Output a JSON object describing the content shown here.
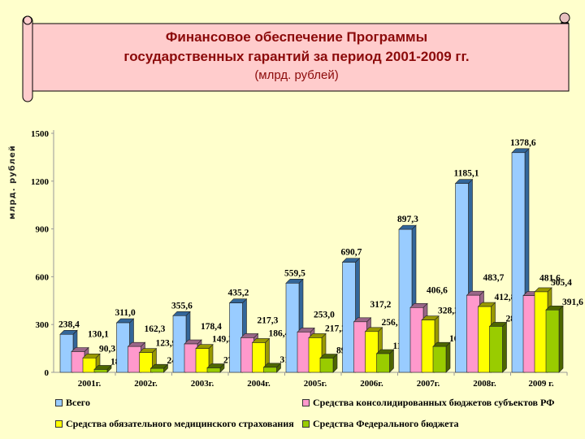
{
  "title": {
    "line1": "Финансовое обеспечение Программы",
    "line2": "государственных гарантий за период 2001-2009 гг.",
    "line3": "(млрд. рублей)"
  },
  "colors": {
    "background": "#ffffcc",
    "scroll_fill": "#ffcccc",
    "title_text": "#8b0a0a",
    "series": [
      "#99ccff",
      "#ff99cc",
      "#ffff00",
      "#99cc00"
    ]
  },
  "chart_data": {
    "type": "bar",
    "title": "Финансовое обеспечение Программы государственных гарантий за период 2001-2009 гг. (млрд. рублей)",
    "xlabel": "",
    "ylabel": "млрд. рублей",
    "ylim": [
      0,
      1500
    ],
    "yticks": [
      0,
      300,
      600,
      900,
      1200,
      1500
    ],
    "grid": false,
    "legend_position": "bottom",
    "categories": [
      "2001г.",
      "2002г.",
      "2003г.",
      "2004г.",
      "2005г.",
      "2006г.",
      "2007г.",
      "2008г.",
      "2009 г."
    ],
    "series": [
      {
        "name": "Всего",
        "values": [
          238.4,
          311.0,
          355.6,
          435.2,
          559.5,
          690.7,
          897.3,
          1185.1,
          1378.6
        ],
        "labels": [
          "238,4",
          "311,0",
          "355,6",
          "435,2",
          "559,5",
          "690,7",
          "897,3",
          "1185,1",
          "1378,6"
        ]
      },
      {
        "name": "Средства консолидированных бюджетов субъектов РФ",
        "values": [
          130.1,
          162.3,
          178.4,
          217.3,
          253.0,
          317.2,
          406.6,
          483.7,
          481.6
        ],
        "labels": [
          "130,1",
          "162,3",
          "178,4",
          "217,3",
          "253,0",
          "317,2",
          "406,6",
          "483,7",
          "481,6"
        ]
      },
      {
        "name": "Средства обязательного медицинского страхования",
        "values": [
          90.3,
          123.9,
          149.3,
          186.4,
          217.2,
          256.1,
          328.2,
          412.8,
          505.4
        ],
        "labels": [
          "90,3",
          "123,9",
          "149,3",
          "186,4",
          "217,2",
          "256,1",
          "328,2",
          "412,8",
          "505,4"
        ]
      },
      {
        "name": "Средства Федерального бюджета",
        "values": [
          18.0,
          24.8,
          27.9,
          31.5,
          89.3,
          117.4,
          162.5,
          288.6,
          391.6
        ],
        "labels": [
          "18,0",
          "24,8",
          "27,9",
          "31,5",
          "89,3",
          "117,4",
          "162,5",
          "288,6",
          "391,6"
        ]
      }
    ]
  },
  "legend": {
    "items": [
      {
        "label": "Всего"
      },
      {
        "label": "Средства консолидированных бюджетов субъектов РФ"
      },
      {
        "label": "Средства обязательного медицинского страхования"
      },
      {
        "label": "Средства Федерального бюджета"
      }
    ]
  }
}
